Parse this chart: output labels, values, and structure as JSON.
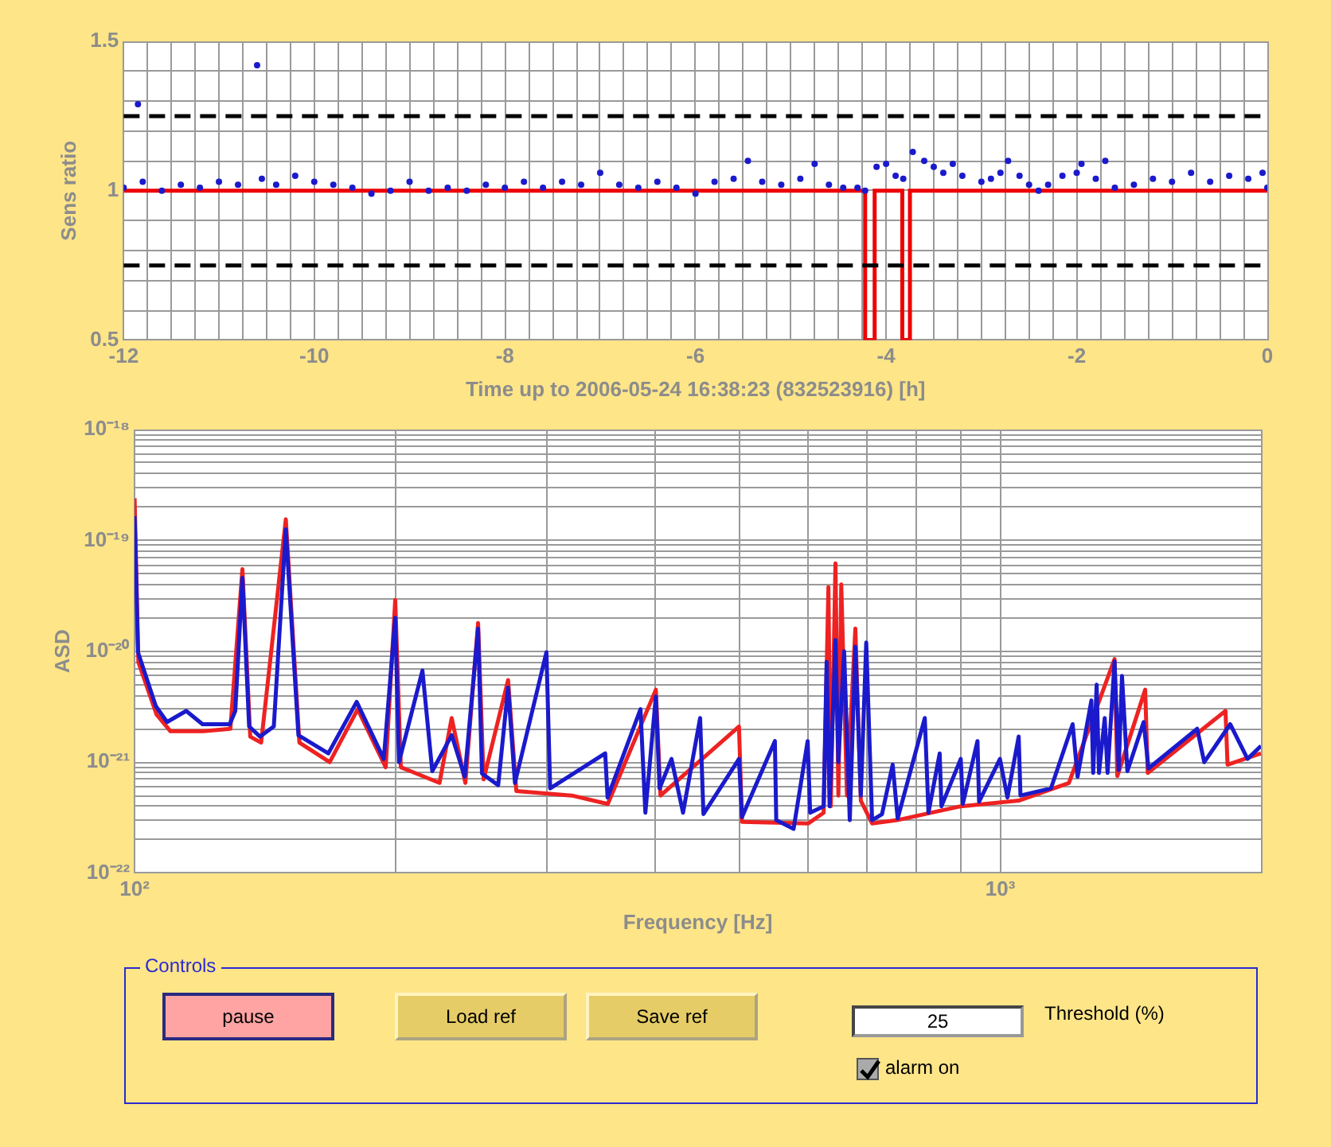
{
  "chart_data": [
    {
      "type": "scatter",
      "xlabel": "Time up to 2006-05-24 16:38:23 (832523916) [h]",
      "ylabel": "Sens ratio",
      "grid": true,
      "xlim": [
        -12,
        0
      ],
      "xticks": [
        -12,
        {
          "value": -11.75,
          "label": null
        },
        {
          "value": -11.5,
          "label": null
        },
        {
          "value": -11.25,
          "label": null
        },
        {
          "value": -11,
          "label": null
        },
        {
          "value": -10.75,
          "label": null
        },
        {
          "value": -10.5,
          "label": null
        },
        {
          "value": -10.25,
          "label": null
        },
        -10,
        {
          "value": -9.75,
          "label": null
        },
        {
          "value": -9.5,
          "label": null
        },
        {
          "value": -9.25,
          "label": null
        },
        {
          "value": -9,
          "label": null
        },
        {
          "value": -8.75,
          "label": null
        },
        {
          "value": -8.5,
          "label": null
        },
        {
          "value": -8.25,
          "label": null
        },
        -8,
        {
          "value": -7.75,
          "label": null
        },
        {
          "value": -7.5,
          "label": null
        },
        {
          "value": -7.25,
          "label": null
        },
        {
          "value": -7,
          "label": null
        },
        {
          "value": -6.75,
          "label": null
        },
        {
          "value": -6.5,
          "label": null
        },
        {
          "value": -6.25,
          "label": null
        },
        -6,
        {
          "value": -5.75,
          "label": null
        },
        {
          "value": -5.5,
          "label": null
        },
        {
          "value": -5.25,
          "label": null
        },
        {
          "value": -5,
          "label": null
        },
        {
          "value": -4.75,
          "label": null
        },
        {
          "value": -4.5,
          "label": null
        },
        {
          "value": -4.25,
          "label": null
        },
        -4,
        {
          "value": -3.75,
          "label": null
        },
        {
          "value": -3.5,
          "label": null
        },
        {
          "value": -3.25,
          "label": null
        },
        {
          "value": -3,
          "label": null
        },
        {
          "value": -2.75,
          "label": null
        },
        {
          "value": -2.5,
          "label": null
        },
        {
          "value": -2.25,
          "label": null
        },
        -2,
        {
          "value": -1.75,
          "label": null
        },
        {
          "value": -1.5,
          "label": null
        },
        {
          "value": -1.25,
          "label": null
        },
        {
          "value": -1,
          "label": null
        },
        {
          "value": -0.75,
          "label": null
        },
        {
          "value": -0.5,
          "label": null
        },
        {
          "value": -0.25,
          "label": null
        },
        0
      ],
      "ylim": [
        0.5,
        1.5
      ],
      "yticks": [
        0.5,
        {
          "value": 0.6,
          "label": null
        },
        {
          "value": 0.7,
          "label": null
        },
        {
          "value": 0.8,
          "label": null
        },
        {
          "value": 0.9,
          "label": null
        },
        1,
        {
          "value": 1.1,
          "label": null
        },
        {
          "value": 1.2,
          "label": null
        },
        {
          "value": 1.3,
          "label": null
        },
        {
          "value": 1.4,
          "label": null
        },
        1.5
      ],
      "ref_lines": [
        {
          "axis": "y",
          "value": 1.25,
          "color": "#000000",
          "line_style": "dashed"
        },
        {
          "axis": "y",
          "value": 0.75,
          "color": "#000000",
          "line_style": "dashed"
        }
      ],
      "series": [
        {
          "type": "scatter",
          "marker": "circle",
          "color": "#1a1acc",
          "x": [
            -12,
            -11.85,
            -11.8,
            -11.6,
            -11.4,
            -11.2,
            -11,
            -10.8,
            -10.6,
            -10.55,
            -10.4,
            -10.2,
            -10,
            -9.8,
            -9.6,
            -9.4,
            -9.2,
            -9,
            -8.8,
            -8.6,
            -8.4,
            -8.2,
            -8,
            -7.8,
            -7.6,
            -7.4,
            -7.2,
            -7,
            -6.8,
            -6.6,
            -6.4,
            -6.2,
            -6,
            -5.8,
            -5.6,
            -5.45,
            -5.3,
            -5.1,
            -4.9,
            -4.75,
            -4.6,
            -4.45,
            -4.3,
            -4.22,
            -4.1,
            -4,
            -3.9,
            -3.82,
            -3.72,
            -3.6,
            -3.5,
            -3.4,
            -3.3,
            -3.2,
            -3,
            -2.9,
            -2.8,
            -2.72,
            -2.6,
            -2.5,
            -2.4,
            -2.3,
            -2.15,
            -2,
            -1.95,
            -1.8,
            -1.7,
            -1.6,
            -1.4,
            -1.2,
            -1,
            -0.8,
            -0.6,
            -0.4,
            -0.2,
            -0.05,
            0
          ],
          "values": [
            1.01,
            1.29,
            1.03,
            1.0,
            1.02,
            1.01,
            1.03,
            1.02,
            1.42,
            1.04,
            1.02,
            1.05,
            1.03,
            1.02,
            1.01,
            0.99,
            1.0,
            1.03,
            1.0,
            1.01,
            1.0,
            1.02,
            1.01,
            1.03,
            1.01,
            1.03,
            1.02,
            1.06,
            1.02,
            1.01,
            1.03,
            1.01,
            0.99,
            1.03,
            1.04,
            1.1,
            1.03,
            1.02,
            1.04,
            1.09,
            1.02,
            1.01,
            1.01,
            1.0,
            1.08,
            1.09,
            1.05,
            1.04,
            1.13,
            1.1,
            1.08,
            1.06,
            1.09,
            1.05,
            1.03,
            1.04,
            1.06,
            1.1,
            1.05,
            1.02,
            1.0,
            1.02,
            1.05,
            1.06,
            1.09,
            1.04,
            1.1,
            1.01,
            1.02,
            1.04,
            1.03,
            1.06,
            1.03,
            1.05,
            1.04,
            1.06,
            1.01
          ]
        },
        {
          "type": "step",
          "marker": "none",
          "color": "#ee0000",
          "x": [
            -12,
            -4.22,
            -4.12,
            -3.83,
            -3.75,
            0
          ],
          "values": [
            1,
            0.5,
            1,
            0.5,
            1,
            1
          ]
        }
      ]
    },
    {
      "type": "line",
      "xlabel": "Frequency [Hz]",
      "ylabel": "ASD",
      "log": "xy",
      "grid": true,
      "xlim": [
        100,
        2000
      ],
      "xticks": [
        {
          "value": 100,
          "label": "10²"
        },
        {
          "value": 200,
          "label": null
        },
        {
          "value": 300,
          "label": null
        },
        {
          "value": 400,
          "label": null
        },
        {
          "value": 500,
          "label": null
        },
        {
          "value": 600,
          "label": null
        },
        {
          "value": 700,
          "label": null
        },
        {
          "value": 800,
          "label": null
        },
        {
          "value": 900,
          "label": null
        },
        {
          "value": 1000,
          "label": "10³"
        },
        {
          "value": 2000,
          "label": null
        }
      ],
      "ylim": [
        1e-22,
        1e-18
      ],
      "yticks": [
        {
          "value": 1e-22,
          "label": "10⁻²²"
        },
        {
          "value": 2e-22,
          "label": null
        },
        {
          "value": 3e-22,
          "label": null
        },
        {
          "value": 4e-22,
          "label": null
        },
        {
          "value": 5e-22,
          "label": null
        },
        {
          "value": 6e-22,
          "label": null
        },
        {
          "value": 7e-22,
          "label": null
        },
        {
          "value": 8e-22,
          "label": null
        },
        {
          "value": 9e-22,
          "label": null
        },
        {
          "value": 1e-21,
          "label": "10⁻²¹"
        },
        {
          "value": 2e-21,
          "label": null
        },
        {
          "value": 3e-21,
          "label": null
        },
        {
          "value": 4e-21,
          "label": null
        },
        {
          "value": 5e-21,
          "label": null
        },
        {
          "value": 6e-21,
          "label": null
        },
        {
          "value": 7e-21,
          "label": null
        },
        {
          "value": 8e-21,
          "label": null
        },
        {
          "value": 9e-21,
          "label": null
        },
        {
          "value": 1e-20,
          "label": "10⁻²⁰"
        },
        {
          "value": 2e-20,
          "label": null
        },
        {
          "value": 3e-20,
          "label": null
        },
        {
          "value": 4e-20,
          "label": null
        },
        {
          "value": 5e-20,
          "label": null
        },
        {
          "value": 6e-20,
          "label": null
        },
        {
          "value": 7e-20,
          "label": null
        },
        {
          "value": 8e-20,
          "label": null
        },
        {
          "value": 9e-20,
          "label": null
        },
        {
          "value": 1e-19,
          "label": "10⁻¹⁹"
        },
        {
          "value": 2e-19,
          "label": null
        },
        {
          "value": 3e-19,
          "label": null
        },
        {
          "value": 4e-19,
          "label": null
        },
        {
          "value": 5e-19,
          "label": null
        },
        {
          "value": 6e-19,
          "label": null
        },
        {
          "value": 7e-19,
          "label": null
        },
        {
          "value": 8e-19,
          "label": null
        },
        {
          "value": 9e-19,
          "label": null
        },
        {
          "value": 1e-18,
          "label": "10⁻¹⁸"
        }
      ],
      "series": [
        {
          "color": "#1a1acc",
          "x": [
            100,
            100.9,
            105.8,
            109,
            114.7,
            119.8,
            128.8,
            130.7,
            133.2,
            135.6,
            139.6,
            144.8,
            149.5,
            154.6,
            167.4,
            180.5,
            194,
            200,
            202,
            215,
            220.7,
            232.4,
            240.6,
            249.3,
            251.9,
            263,
            270,
            275,
            299,
            302,
            349.6,
            351.8,
            384,
            389,
            400,
            404,
            417,
            430,
            450,
            454,
            499,
            503,
            549,
            551,
            577,
            599,
            603,
            625,
            630,
            635,
            645,
            650,
            660,
            670,
            680,
            690,
            700,
            711,
            730,
            751,
            761,
            818,
            826,
            851,
            855,
            900,
            905,
            941,
            945,
            999,
            1019,
            1050,
            1055,
            1144,
            1212,
            1228,
            1274,
            1280,
            1292,
            1300,
            1320,
            1330,
            1355,
            1370,
            1382,
            1402,
            1464,
            1483,
            1688,
            1720,
            1843,
            1930,
            2000
          ],
          "values": [
            1.65e-19,
            9.8e-21,
            3.2e-21,
            2.3e-21,
            2.9e-21,
            2.2e-21,
            2.2e-21,
            2.9e-21,
            4.6e-20,
            2.1e-21,
            1.7e-21,
            2.1e-21,
            1.26e-19,
            1.75e-21,
            1.2e-21,
            3.5e-21,
            1.07e-21,
            2e-20,
            1e-21,
            6.7e-21,
            8.3e-22,
            1.75e-21,
            7.4e-22,
            1.6e-20,
            7.9e-22,
            6.2e-22,
            4.7e-21,
            6.5e-22,
            9.8e-21,
            5.8e-22,
            1.2e-21,
            4.8e-22,
            3e-21,
            3.5e-22,
            3.9e-21,
            5.8e-22,
            1.07e-21,
            3.5e-22,
            2.5e-21,
            3.4e-22,
            1.07e-21,
            3.2e-22,
            1.55e-21,
            3e-22,
            2.5e-22,
            1.55e-21,
            3.5e-22,
            4e-22,
            8e-21,
            4e-22,
            1.26e-20,
            1e-21,
            1e-20,
            3e-22,
            1.1e-20,
            5e-22,
            1.2e-20,
            3e-22,
            3.4e-22,
            9.5e-22,
            3.1e-22,
            2.5e-21,
            3.5e-22,
            1.2e-21,
            4e-22,
            1.07e-21,
            4.2e-22,
            1.55e-21,
            4.4e-22,
            1.07e-21,
            4.8e-22,
            1.7e-21,
            5e-22,
            5.8e-22,
            2.2e-21,
            7.4e-22,
            3.6e-21,
            8e-22,
            5e-21,
            8e-22,
            2.5e-21,
            8e-22,
            8.1e-21,
            8.5e-22,
            6e-21,
            8.3e-22,
            2.3e-21,
            8.8e-22,
            2e-21,
            1e-21,
            2.2e-21,
            1.07e-21,
            1.4e-21
          ]
        },
        {
          "color": "#ee2222",
          "x": [
            100,
            101,
            106,
            110,
            120,
            129,
            133.2,
            136,
            140,
            149.5,
            155,
            168,
            181,
            195,
            200,
            203,
            225,
            232.4,
            241,
            249.3,
            253,
            270,
            276,
            320,
            352,
            400,
            405,
            499,
            503,
            600,
            625,
            633,
            637,
            645,
            650,
            655,
            665,
            680,
            690,
            711,
            760,
            900,
            1050,
            1200,
            1355,
            1365,
            1470,
            1480,
            1820,
            1830,
            2000
          ],
          "values": [
            2.4e-19,
            8e-21,
            2.7e-21,
            1.9e-21,
            1.9e-21,
            2e-21,
            5.5e-20,
            1.7e-21,
            1.5e-21,
            1.55e-19,
            1.5e-21,
            1e-21,
            3e-21,
            9e-22,
            2.9e-20,
            9e-22,
            6.5e-22,
            2.5e-21,
            6.5e-22,
            1.8e-20,
            7e-22,
            5.5e-21,
            5.5e-22,
            5e-22,
            4.2e-22,
            4.5e-21,
            5e-22,
            2.1e-21,
            2.9e-22,
            2.8e-22,
            3.5e-22,
            3.8e-20,
            4e-22,
            6.2e-20,
            5e-22,
            4e-20,
            5e-22,
            1.6e-20,
            4.5e-22,
            2.8e-22,
            3e-22,
            4e-22,
            4.5e-22,
            6.5e-22,
            8.5e-21,
            7.5e-22,
            4.5e-21,
            8e-22,
            2.9e-21,
            9.5e-22,
            1.2e-21
          ]
        }
      ]
    },
    {
      "type": "other",
      "title": "Controls",
      "annotations": [
        "pause",
        "Load ref",
        "Save ref",
        "25",
        "Threshold (%)",
        "alarm on"
      ]
    }
  ]
}
